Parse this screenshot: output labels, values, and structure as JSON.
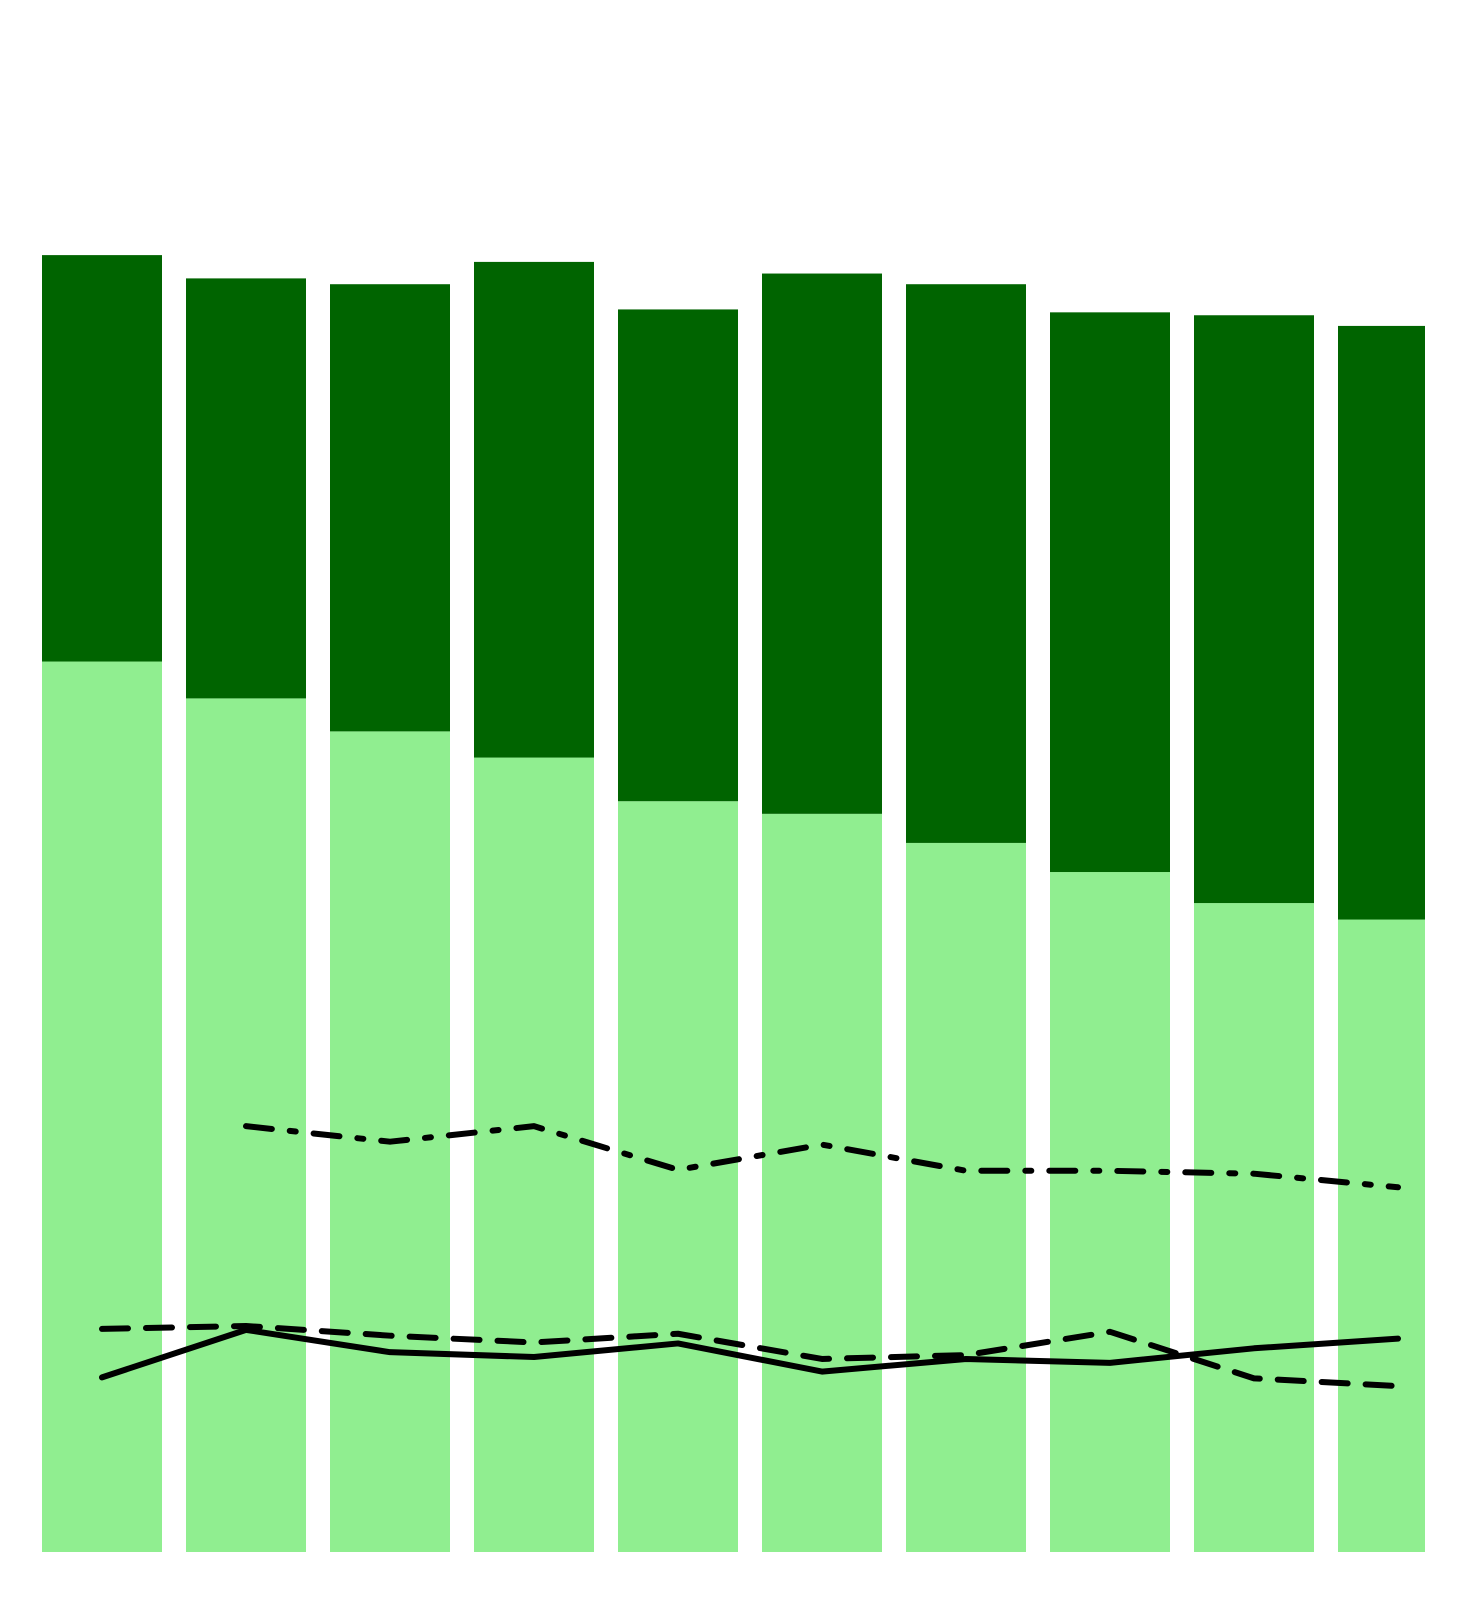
{
  "chart_data": {
    "type": "bar_line",
    "categories": [
      null,
      null,
      null,
      null,
      null,
      null,
      null,
      null,
      null,
      null
    ],
    "ylim": [
      0,
      160
    ],
    "stacked": true,
    "series": [
      {
        "color": "#90ee90",
        "values": [
          91.8,
          88.0,
          84.6,
          81.9,
          77.4,
          76.1,
          73.1,
          70.1,
          66.9,
          65.2
        ]
      },
      {
        "color": "#006400",
        "values": [
          41.9,
          43.3,
          46.1,
          51.1,
          50.7,
          55.7,
          57.6,
          57.7,
          60.6,
          61.2
        ]
      }
    ],
    "lines": [
      {
        "color": "#000000",
        "dash": "solid",
        "values": [
          18.0,
          22.9,
          20.6,
          20.1,
          21.5,
          18.6,
          19.9,
          19.5,
          21.0,
          22.0
        ]
      },
      {
        "color": "#000000",
        "dash": "dashed",
        "values": [
          23.0,
          23.3,
          22.3,
          21.6,
          22.5,
          19.9,
          20.3,
          22.7,
          17.9,
          17.1
        ]
      },
      {
        "color": "#000000",
        "dash": "dashdot",
        "values": [
          null,
          43.9,
          42.3,
          43.9,
          39.4,
          42.0,
          39.3,
          39.3,
          39.0,
          37.6
        ]
      }
    ]
  }
}
